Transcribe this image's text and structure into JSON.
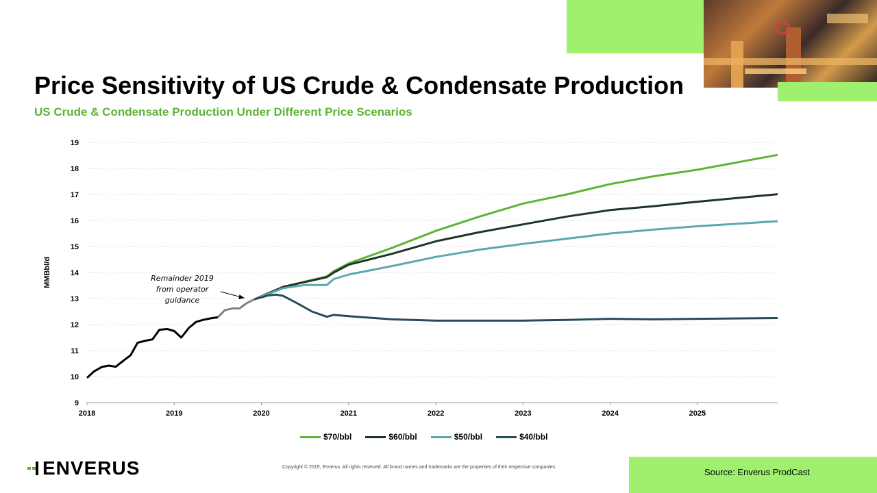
{
  "title": "Price Sensitivity  of US Crude & Condensate Production",
  "subtitle": "US Crude & Condensate Production Under Different Price Scenarios",
  "logo": "ENVERUS",
  "copyright": "Copyright © 2019, Enverus.  All rights reserved. All brand names and trademarks are the properties of their respective companies.",
  "source": "Source: Enverus  ProdCast",
  "colors": {
    "accent_green": "#9ff06e",
    "subtitle_green": "#5ab534"
  },
  "chart_data": {
    "type": "line",
    "ylabel": "MMBbl/d",
    "xlabel": "",
    "ylim": [
      9,
      19
    ],
    "xlim": [
      2018,
      2025.92
    ],
    "x_ticks": [
      "2018",
      "2019",
      "2020",
      "2021",
      "2022",
      "2023",
      "2024",
      "2025"
    ],
    "y_ticks": [
      "9",
      "10",
      "11",
      "12",
      "13",
      "14",
      "15",
      "16",
      "17",
      "18",
      "19"
    ],
    "grid": "horizontal",
    "legend": "bottom",
    "annotation": {
      "text": [
        "Remainder 2019",
        "from operator",
        "guidance"
      ],
      "points_to": [
        2019.85,
        12.97
      ]
    },
    "history": {
      "x": [
        2018.0,
        2018.08,
        2018.17,
        2018.25,
        2018.33,
        2018.42,
        2018.5,
        2018.58,
        2018.67,
        2018.75,
        2018.83,
        2018.92,
        2019.0,
        2019.08,
        2019.17,
        2019.25,
        2019.33,
        2019.42,
        2019.5
      ],
      "y": [
        9.95,
        10.2,
        10.37,
        10.42,
        10.38,
        10.62,
        10.82,
        11.3,
        11.38,
        11.43,
        11.8,
        11.83,
        11.75,
        11.5,
        11.88,
        12.1,
        12.18,
        12.24,
        12.28
      ]
    },
    "guidance": {
      "x": [
        2019.5,
        2019.58,
        2019.67,
        2019.75,
        2019.83,
        2019.92
      ],
      "y": [
        12.28,
        12.55,
        12.62,
        12.62,
        12.82,
        12.97
      ]
    },
    "series": [
      {
        "name": "$70/bbl",
        "color": "#5ab534",
        "x": [
          2019.92,
          2020.25,
          2020.75,
          2020.83,
          2021.0,
          2021.5,
          2022.0,
          2022.5,
          2023.0,
          2023.5,
          2024.0,
          2024.5,
          2025.0,
          2025.92
        ],
        "y": [
          12.97,
          13.45,
          13.85,
          14.05,
          14.35,
          14.95,
          15.6,
          16.15,
          16.65,
          17.0,
          17.4,
          17.7,
          17.95,
          18.52
        ]
      },
      {
        "name": "$60/bbl",
        "color": "#1e3426",
        "x": [
          2019.92,
          2020.25,
          2020.75,
          2020.83,
          2021.0,
          2021.5,
          2022.0,
          2022.5,
          2023.0,
          2023.5,
          2024.0,
          2024.5,
          2025.0,
          2025.92
        ],
        "y": [
          12.97,
          13.45,
          13.82,
          14.0,
          14.3,
          14.72,
          15.2,
          15.55,
          15.85,
          16.15,
          16.4,
          16.55,
          16.72,
          17.01
        ]
      },
      {
        "name": "$50/bbl",
        "color": "#5ba8ae",
        "x": [
          2019.92,
          2020.25,
          2020.5,
          2020.75,
          2020.83,
          2021.0,
          2021.5,
          2022.0,
          2022.5,
          2023.0,
          2023.5,
          2024.0,
          2024.5,
          2025.0,
          2025.92
        ],
        "y": [
          12.97,
          13.4,
          13.52,
          13.52,
          13.75,
          13.92,
          14.25,
          14.6,
          14.88,
          15.1,
          15.3,
          15.5,
          15.65,
          15.78,
          15.97
        ]
      },
      {
        "name": "$40/bbl",
        "color": "#264a5a",
        "x": [
          2019.92,
          2020.08,
          2020.17,
          2020.25,
          2020.42,
          2020.58,
          2020.75,
          2020.83,
          2021.0,
          2021.5,
          2022.0,
          2022.5,
          2023.0,
          2023.5,
          2024.0,
          2024.5,
          2025.0,
          2025.92
        ],
        "y": [
          12.97,
          13.12,
          13.15,
          13.1,
          12.8,
          12.5,
          12.3,
          12.37,
          12.32,
          12.2,
          12.15,
          12.15,
          12.15,
          12.18,
          12.22,
          12.2,
          12.22,
          12.25
        ]
      }
    ]
  }
}
